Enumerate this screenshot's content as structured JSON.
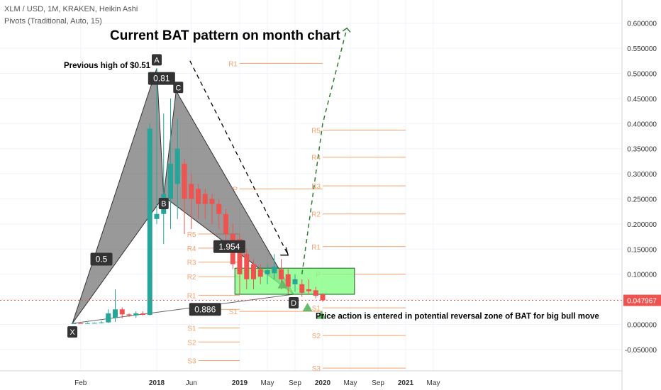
{
  "header": {
    "symbol_line": "XLM / USD, 1M, KRAKEN, Heikin Ashi",
    "indicator_line": "Pivots (Traditional, Auto, 15)"
  },
  "chart_data": {
    "type": "candlestick",
    "title": "Current BAT pattern on month chart",
    "y_axis": {
      "min": -0.08,
      "max": 0.64,
      "ticks": [
        "0.600000",
        "0.550000",
        "0.500000",
        "0.450000",
        "0.400000",
        "0.350000",
        "0.300000",
        "0.250000",
        "0.200000",
        "0.150000",
        "0.100000",
        "0.050000",
        "0.000000",
        "-0.050000"
      ],
      "tick_values": [
        0.6,
        0.55,
        0.5,
        0.45,
        0.4,
        0.35,
        0.3,
        0.25,
        0.2,
        0.15,
        0.1,
        0.05,
        0.0,
        -0.05
      ]
    },
    "x_axis": {
      "labels": [
        "Feb",
        "2018",
        "Jun",
        "2019",
        "May",
        "Sep",
        "2020",
        "May",
        "Sep",
        "2021",
        "May"
      ],
      "label_month_index": [
        1,
        12,
        17,
        24,
        28,
        32,
        36,
        40,
        44,
        48,
        52
      ]
    },
    "current_price": {
      "label": "0.047967",
      "value": 0.047967,
      "color": "#ef5350"
    },
    "candles": [
      {
        "month": 0,
        "open": 0.002,
        "high": 0.003,
        "low": 0.0015,
        "close": 0.0023
      },
      {
        "month": 1,
        "open": 0.0023,
        "high": 0.003,
        "low": 0.0018,
        "close": 0.002
      },
      {
        "month": 2,
        "open": 0.002,
        "high": 0.004,
        "low": 0.0015,
        "close": 0.0025
      },
      {
        "month": 3,
        "open": 0.0025,
        "high": 0.004,
        "low": 0.002,
        "close": 0.003
      },
      {
        "month": 4,
        "open": 0.003,
        "high": 0.007,
        "low": 0.002,
        "close": 0.004
      },
      {
        "month": 5,
        "open": 0.004,
        "high": 0.03,
        "low": 0.003,
        "close": 0.022
      },
      {
        "month": 6,
        "open": 0.013,
        "high": 0.07,
        "low": 0.005,
        "close": 0.03
      },
      {
        "month": 7,
        "open": 0.03,
        "high": 0.034,
        "low": 0.012,
        "close": 0.02
      },
      {
        "month": 8,
        "open": 0.02,
        "high": 0.022,
        "low": 0.015,
        "close": 0.018
      },
      {
        "month": 9,
        "open": 0.018,
        "high": 0.026,
        "low": 0.013,
        "close": 0.022
      },
      {
        "month": 10,
        "open": 0.022,
        "high": 0.026,
        "low": 0.018,
        "close": 0.019
      },
      {
        "month": 11,
        "open": 0.019,
        "high": 0.4,
        "low": 0.018,
        "close": 0.39
      },
      {
        "month": 12,
        "open": 0.21,
        "high": 0.51,
        "low": 0.2,
        "close": 0.22
      },
      {
        "month": 13,
        "open": 0.22,
        "high": 0.42,
        "low": 0.16,
        "close": 0.26
      },
      {
        "month": 14,
        "open": 0.25,
        "high": 0.45,
        "low": 0.19,
        "close": 0.32
      },
      {
        "month": 15,
        "open": 0.28,
        "high": 0.41,
        "low": 0.21,
        "close": 0.35
      },
      {
        "month": 16,
        "open": 0.32,
        "high": 0.33,
        "low": 0.18,
        "close": 0.25
      },
      {
        "month": 17,
        "open": 0.28,
        "high": 0.3,
        "low": 0.19,
        "close": 0.25
      },
      {
        "month": 18,
        "open": 0.27,
        "high": 0.28,
        "low": 0.21,
        "close": 0.24
      },
      {
        "month": 19,
        "open": 0.26,
        "high": 0.27,
        "low": 0.21,
        "close": 0.24
      },
      {
        "month": 20,
        "open": 0.25,
        "high": 0.26,
        "low": 0.2,
        "close": 0.24
      },
      {
        "month": 21,
        "open": 0.24,
        "high": 0.25,
        "low": 0.19,
        "close": 0.22
      },
      {
        "month": 22,
        "open": 0.22,
        "high": 0.23,
        "low": 0.16,
        "close": 0.18
      },
      {
        "month": 23,
        "open": 0.18,
        "high": 0.2,
        "low": 0.11,
        "close": 0.12
      },
      {
        "month": 24,
        "open": 0.17,
        "high": 0.18,
        "low": 0.06,
        "close": 0.1
      },
      {
        "month": 25,
        "open": 0.14,
        "high": 0.15,
        "low": 0.07,
        "close": 0.09
      },
      {
        "month": 26,
        "open": 0.12,
        "high": 0.13,
        "low": 0.07,
        "close": 0.09
      },
      {
        "month": 27,
        "open": 0.11,
        "high": 0.12,
        "low": 0.08,
        "close": 0.095
      },
      {
        "month": 28,
        "open": 0.1,
        "high": 0.12,
        "low": 0.08,
        "close": 0.108
      },
      {
        "month": 29,
        "open": 0.102,
        "high": 0.14,
        "low": 0.09,
        "close": 0.115
      },
      {
        "month": 30,
        "open": 0.11,
        "high": 0.13,
        "low": 0.07,
        "close": 0.09
      },
      {
        "month": 31,
        "open": 0.1,
        "high": 0.11,
        "low": 0.06,
        "close": 0.075
      },
      {
        "month": 32,
        "open": 0.08,
        "high": 0.1,
        "low": 0.065,
        "close": 0.09
      },
      {
        "month": 33,
        "open": 0.08,
        "high": 0.09,
        "low": 0.055,
        "close": 0.063
      },
      {
        "month": 34,
        "open": 0.07,
        "high": 0.09,
        "low": 0.06,
        "close": 0.066
      },
      {
        "month": 35,
        "open": 0.068,
        "high": 0.075,
        "low": 0.052,
        "close": 0.057
      },
      {
        "month": 36,
        "open": 0.06,
        "high": 0.062,
        "low": 0.045,
        "close": 0.048
      }
    ],
    "pattern": {
      "name": "BAT",
      "points": [
        {
          "label": "X",
          "month": -0.2,
          "value": 0.002
        },
        {
          "label": "A",
          "month": 12,
          "value": 0.51
        },
        {
          "label": "B",
          "month": 13,
          "value": 0.255
        },
        {
          "label": "C",
          "month": 14.8,
          "value": 0.465
        },
        {
          "label": "D",
          "month": 31.8,
          "value": 0.06
        }
      ],
      "ratios": [
        {
          "label": "0.5",
          "month": 4,
          "value": 0.13
        },
        {
          "label": "0.81",
          "month": 12.7,
          "value": 0.49
        },
        {
          "label": "1.954",
          "month": 22.5,
          "value": 0.155
        },
        {
          "label": "0.886",
          "month": 19,
          "value": 0.03
        }
      ]
    },
    "pivot_sets": [
      {
        "x_from": 18,
        "x_to": 24,
        "label_month": 18,
        "levels": [
          {
            "name": "R5",
            "value": 0.18
          },
          {
            "name": "R4",
            "value": 0.152
          },
          {
            "name": "R3",
            "value": 0.124
          },
          {
            "name": "R2",
            "value": 0.095
          },
          {
            "name": "R1",
            "value": 0.058
          },
          {
            "name": "P",
            "value": 0.03
          },
          {
            "name": "S1",
            "value": -0.007
          },
          {
            "name": "S2",
            "value": -0.035
          },
          {
            "name": "S3",
            "value": -0.072
          }
        ]
      },
      {
        "x_from": 24,
        "x_to": 36,
        "label_month": 24,
        "levels": [
          {
            "name": "R1",
            "value": 0.52
          },
          {
            "name": "P",
            "value": 0.27
          },
          {
            "name": "S1",
            "value": 0.026
          }
        ]
      },
      {
        "x_from": 36,
        "x_to": 48,
        "label_month": 36,
        "levels": [
          {
            "name": "R5",
            "value": 0.387
          },
          {
            "name": "R4",
            "value": 0.333
          },
          {
            "name": "R3",
            "value": 0.276
          },
          {
            "name": "R2",
            "value": 0.22
          },
          {
            "name": "R1",
            "value": 0.155
          },
          {
            "name": "P",
            "value": 0.1
          },
          {
            "name": "S1",
            "value": 0.033
          },
          {
            "name": "S2",
            "value": -0.022
          },
          {
            "name": "S3",
            "value": -0.087
          }
        ]
      }
    ],
    "prz_zone": {
      "from_month": 23.3,
      "to_month": 40.6,
      "top": 0.112,
      "bottom": 0.06
    },
    "projection_path": [
      {
        "month": 33,
        "value": 0.1
      },
      {
        "month": 36,
        "value": 0.4
      },
      {
        "month": 39.5,
        "value": 0.59
      }
    ],
    "projection_tip": {
      "month": 40,
      "value": 0.582
    },
    "trend_arrow": {
      "from_month": 16.8,
      "from_value": 0.525,
      "to_month": 31,
      "to_value": 0.138
    },
    "markers": [
      {
        "month": 30.2,
        "value": 0.079
      },
      {
        "month": 33.8,
        "value": 0.033
      },
      {
        "month": 35.8,
        "value": 0.018
      }
    ],
    "annotations": [
      {
        "text": "Previous high of $0.51",
        "month": 0,
        "value": 0.516
      },
      {
        "text": "Price action is entered in potential reversal zone of BAT for big bull move",
        "month": 27.8,
        "value": 0.0115
      }
    ],
    "colors": {
      "up": "#26a69a",
      "down": "#ef5350",
      "pivot": "#f7a26b",
      "pattern_fill": "#555555",
      "zone_fill": "#7cfc7c",
      "projection": "#2e7d32"
    }
  }
}
